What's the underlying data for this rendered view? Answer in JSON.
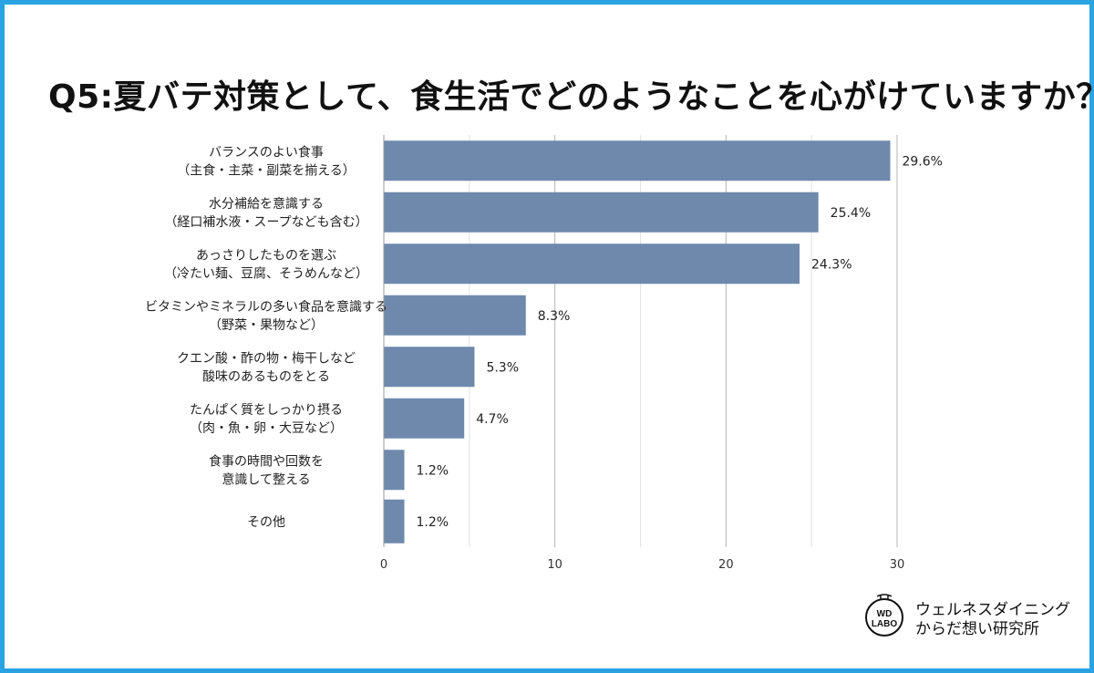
{
  "title": "Q5:夏バテ対策として、食生活でどのようなことを心がけていますか？",
  "logo": {
    "badge_line1": "WD",
    "badge_line2": "LABO",
    "line1": "ウェルネスダイニング",
    "line2": "からだ想い研究所"
  },
  "colors": {
    "bar": "#6f89ad",
    "border": "#2aa3e3",
    "grid": "#bfbfbf"
  },
  "chart_data": {
    "type": "bar",
    "orientation": "horizontal",
    "categories": [
      [
        "バランスのよい食事",
        "（主食・主菜・副菜を揃える）"
      ],
      [
        "水分補給を意識する",
        "（経口補水液・スープなども含む）"
      ],
      [
        "あっさりしたものを選ぶ",
        "（冷たい麺、豆腐、そうめんなど）"
      ],
      [
        "ビタミンやミネラルの多い食品を意識する",
        "（野菜・果物など）"
      ],
      [
        "クエン酸・酢の物・梅干しなど",
        "酸味のあるものをとる"
      ],
      [
        "たんぱく質をしっかり摂る",
        "（肉・魚・卵・大豆など）"
      ],
      [
        "食事の時間や回数を",
        "意識して整える"
      ],
      [
        "その他"
      ]
    ],
    "values": [
      29.6,
      25.4,
      24.3,
      8.3,
      5.3,
      4.7,
      1.2,
      1.2
    ],
    "value_labels": [
      "29.6%",
      "25.4%",
      "24.3%",
      "8.3%",
      "5.3%",
      "4.7%",
      "1.2%",
      "1.2%"
    ],
    "xlim": [
      0,
      30
    ],
    "xticks": [
      0,
      10,
      20,
      30
    ],
    "grid": true
  }
}
